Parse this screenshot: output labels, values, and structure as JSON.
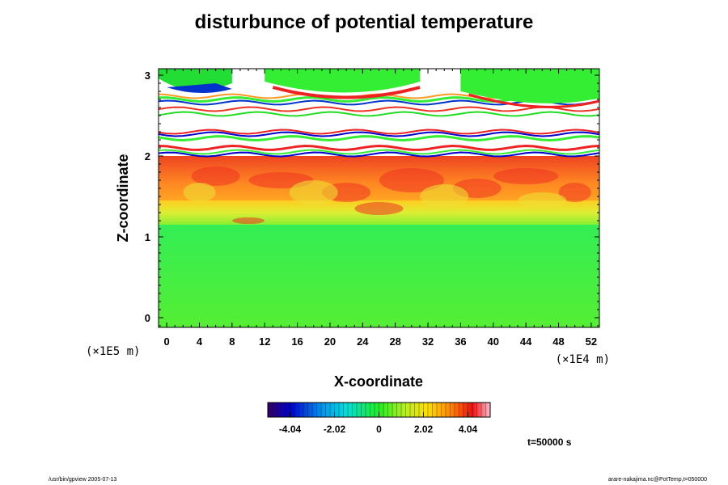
{
  "chart_data": {
    "type": "heatmap",
    "title": "disturbunce of potential temperature",
    "xlabel": "X-coordinate",
    "ylabel": "Z-coordinate",
    "x_unit": "(×1E4 m)",
    "y_unit": "(×1E5 m)",
    "x_ticks": [
      0,
      4,
      8,
      12,
      16,
      20,
      24,
      28,
      32,
      36,
      40,
      44,
      48,
      52
    ],
    "y_ticks": [
      0,
      1,
      2,
      3
    ],
    "xlim": [
      -1,
      53
    ],
    "ylim": [
      -0.12,
      3.08
    ],
    "colorbar": {
      "ticks": [
        -4.04,
        -2.02,
        0,
        2.02,
        4.04
      ],
      "tick_labels": [
        "-4.04",
        "-2.02",
        "0",
        "2.02",
        "4.04"
      ],
      "range": [
        -5.05,
        5.05
      ]
    },
    "regions": [
      {
        "z_range": [
          -0.12,
          1.15
        ],
        "value": 0.1
      },
      {
        "z_range": [
          1.15,
          1.45
        ],
        "value": 1.6
      },
      {
        "z_range": [
          1.45,
          2.0
        ],
        "value": 2.8
      },
      {
        "z_range": [
          2.0,
          3.08
        ],
        "value": "out of range (white) with banded extremes"
      }
    ]
  },
  "footer": {
    "time": "t=50000 s",
    "left_note": "/usr/bin/gpview 2005-07-13",
    "right_note": "arare-nakajima.nc@PotTemp,t=050000"
  },
  "colors": {
    "background": "#ffffff",
    "out_of_range": "#ffffff",
    "low": "#0000cc",
    "mid": "#33ee33",
    "high": "#ee2222"
  }
}
